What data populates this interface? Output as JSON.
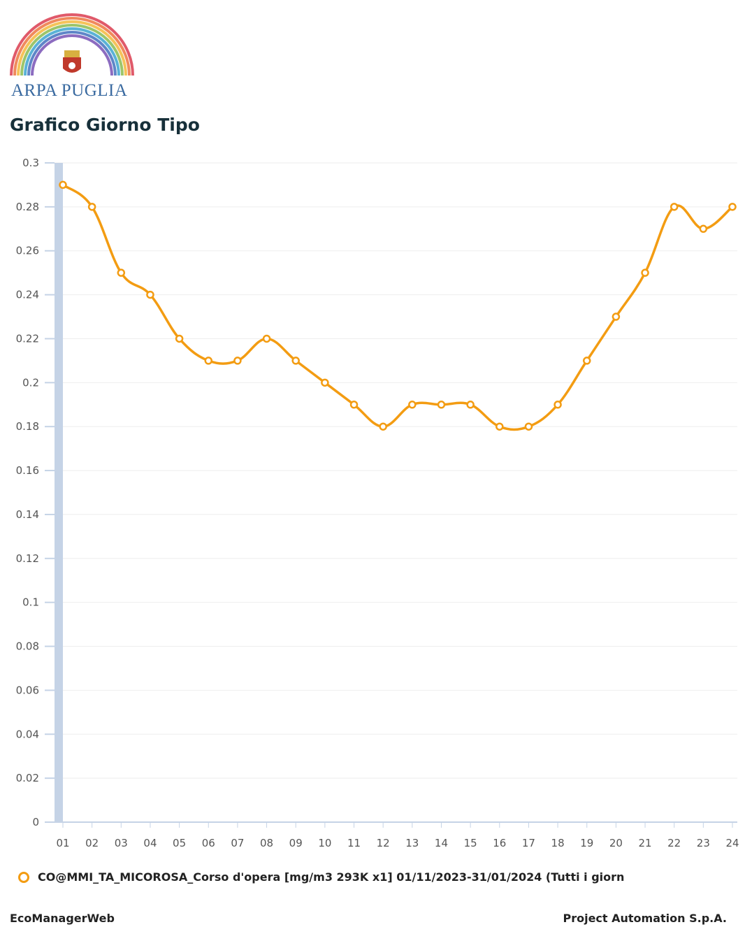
{
  "header": {
    "logo_text": "ARPA PUGLIA",
    "title": "Grafico Giorno Tipo"
  },
  "chart_data": {
    "type": "line",
    "title": "",
    "xlabel": "",
    "ylabel": "",
    "categories": [
      "01",
      "02",
      "03",
      "04",
      "05",
      "06",
      "07",
      "08",
      "09",
      "10",
      "11",
      "12",
      "13",
      "14",
      "15",
      "16",
      "17",
      "18",
      "19",
      "20",
      "21",
      "22",
      "23",
      "24"
    ],
    "series": [
      {
        "name": "CO@MMI_TA_MICOROSA_Corso d'opera [mg/m3 293K x1] 01/11/2023-31/01/2024 (Tutti i giorn",
        "values": [
          0.29,
          0.28,
          0.25,
          0.24,
          0.22,
          0.21,
          0.21,
          0.22,
          0.21,
          0.2,
          0.19,
          0.18,
          0.19,
          0.19,
          0.19,
          0.18,
          0.18,
          0.19,
          0.21,
          0.23,
          0.25,
          0.28,
          0.27,
          0.28
        ],
        "color": "#f39c12"
      }
    ],
    "ylim": [
      0,
      0.3
    ],
    "yticks": [
      "0.3",
      "0.28",
      "0.26",
      "0.24",
      "0.22",
      "0.2",
      "0.18",
      "0.16",
      "0.14",
      "0.12",
      "0.1",
      "0.08",
      "0.06",
      "0.04",
      "0.02",
      "0"
    ],
    "grid": true,
    "legend_position": "bottom"
  },
  "footer": {
    "left": "EcoManagerWeb",
    "right": "Project Automation S.p.A."
  },
  "colors": {
    "series": "#f39c12",
    "axis_band": "#c5d3e6",
    "title": "#17303a",
    "logo_text": "#3a6aa0"
  }
}
